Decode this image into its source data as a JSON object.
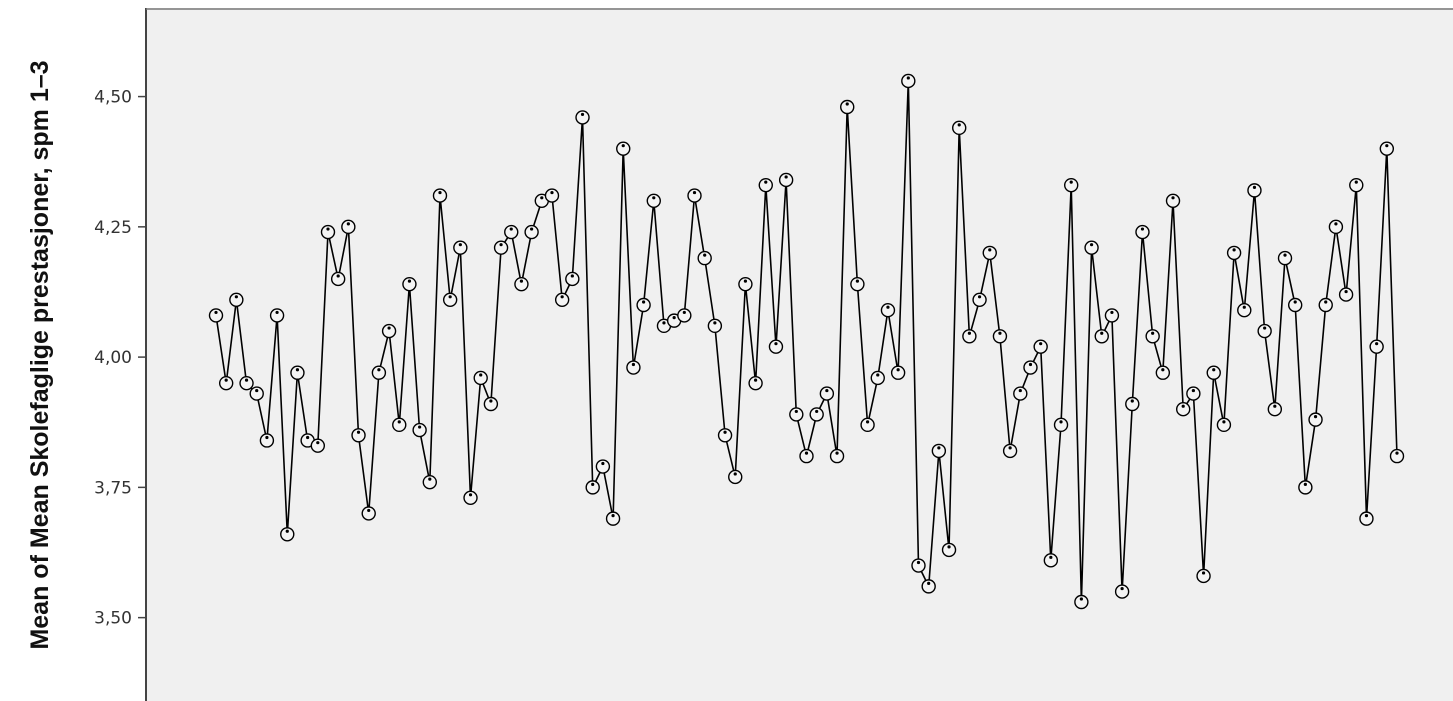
{
  "chart_data": {
    "type": "line",
    "title": "",
    "xlabel": "",
    "ylabel": "Mean of Mean Skolefaglige prestasjoner, spm 1–3",
    "ylim": [
      3.34,
      4.67
    ],
    "yticks": [
      {
        "value": 3.5,
        "label": "3,50"
      },
      {
        "value": 3.75,
        "label": "3,75"
      },
      {
        "value": 4.0,
        "label": "4,00"
      },
      {
        "value": 4.25,
        "label": "4,25"
      },
      {
        "value": 4.5,
        "label": "4,50"
      }
    ],
    "grid": false,
    "marker": "circle",
    "background": "#f0f0f0",
    "line_color": "#000000",
    "series": [
      {
        "values": [
          4.08,
          3.95,
          4.11,
          3.95,
          3.93,
          3.84,
          4.08,
          3.66,
          3.97,
          3.84,
          3.83,
          4.24,
          4.15,
          4.25,
          3.85,
          3.7,
          3.97,
          4.05,
          3.87,
          4.14,
          3.86,
          3.76,
          4.31,
          4.11,
          4.21,
          3.73,
          3.96,
          3.91,
          4.21,
          4.24,
          4.14,
          4.24,
          4.3,
          4.31,
          4.11,
          4.15,
          4.46,
          3.75,
          3.79,
          3.69,
          4.4,
          3.98,
          4.1,
          4.3,
          4.06,
          4.07,
          4.08,
          4.31,
          4.19,
          4.06,
          3.85,
          3.77,
          4.14,
          3.95,
          4.33,
          4.02,
          4.34,
          3.89,
          3.81,
          3.89,
          3.93,
          3.81,
          4.48,
          4.14,
          3.87,
          3.96,
          4.09,
          3.97,
          4.53,
          3.6,
          3.56,
          3.82,
          3.63,
          4.44,
          4.04,
          4.11,
          4.2,
          4.04,
          3.82,
          3.93,
          3.98,
          4.02,
          3.61,
          3.87,
          4.33,
          3.53,
          4.21,
          4.04,
          4.08,
          3.55,
          3.91,
          4.24,
          4.04,
          3.97,
          4.3,
          3.9,
          3.93,
          3.58,
          3.97,
          3.87,
          4.2,
          4.09,
          4.32,
          4.05,
          3.9,
          4.19,
          4.1,
          3.75,
          3.88,
          4.1,
          4.25,
          4.12,
          4.33,
          3.69,
          4.02,
          4.4,
          3.81
        ]
      }
    ]
  }
}
